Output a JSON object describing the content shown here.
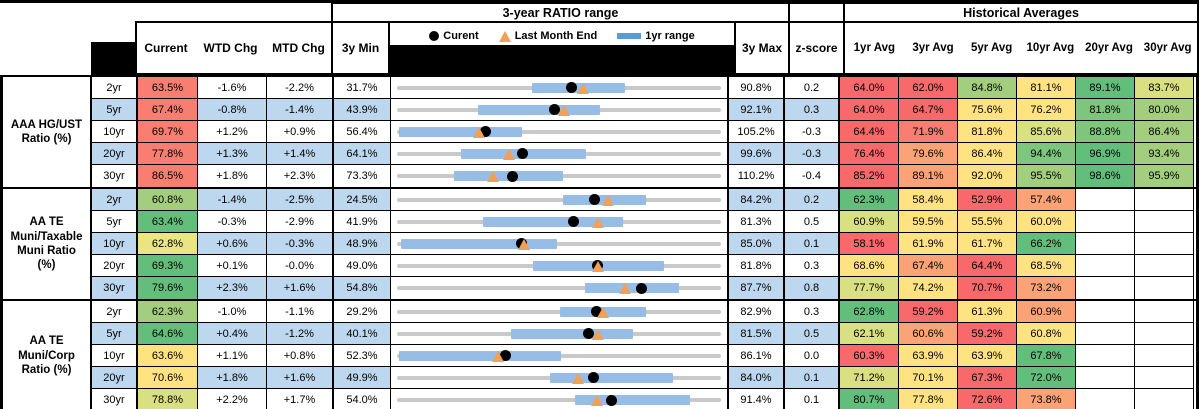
{
  "palette": {
    "r": "#F8696B",
    "s": "#F87E72",
    "o": "#FBA276",
    "y": "#FFE383",
    "py": "#E9E583",
    "yg": "#D9E082",
    "lg": "#A2CE7E",
    "mg": "#7EC57D",
    "g": "#63BE7B",
    "band": "#BDD7EE",
    "bar": "#97BCE5",
    "line": "#C9C9C9",
    "swatch": "#5B9BD5",
    "triangle": "#F2A054",
    "dot": "#000000"
  },
  "header": {
    "range_title": "3-year RATIO range",
    "hist_title": "Historical Averages",
    "col_current": "Current",
    "col_wtd": "WTD Chg",
    "col_mtd": "MTD Chg",
    "col_min": "3y Min",
    "col_max": "3y Max",
    "col_z": "z-score",
    "avg_cols": [
      "1yr Avg",
      "3yr Avg",
      "5yr Avg",
      "10yr Avg",
      "20yr Avg",
      "30yr Avg"
    ],
    "legend": {
      "current": "Curent",
      "lme": "Last Month End",
      "range": "1yr range"
    }
  },
  "groups": [
    {
      "label_lines": [
        "AAA HG/UST",
        "Ratio (%)"
      ],
      "rows": [
        {
          "tenor": "2yr",
          "current": "63.5%",
          "cur_c": "s",
          "wtd": "-1.6%",
          "mtd": "-2.2%",
          "min": "31.7%",
          "max": "90.8%",
          "z": "0.2",
          "chart": {
            "min": 31.7,
            "max": 90.8,
            "cur": 63.5,
            "lme": 65.7,
            "lo": 56.3,
            "hi": 73.2
          },
          "avg_vals": [
            "64.0%",
            "62.0%",
            "84.8%",
            "81.1%",
            "89.1%",
            "83.7%"
          ],
          "avg_cols": [
            "r",
            "r",
            "lg",
            "y",
            "g",
            "yg"
          ]
        },
        {
          "tenor": "5yr",
          "current": "67.4%",
          "cur_c": "s",
          "wtd": "-0.8%",
          "mtd": "-1.4%",
          "min": "43.9%",
          "max": "92.1%",
          "z": "0.3",
          "chart": {
            "min": 43.9,
            "max": 92.1,
            "cur": 67.4,
            "lme": 68.8,
            "lo": 55.9,
            "hi": 74.1
          },
          "avg_vals": [
            "64.0%",
            "64.7%",
            "75.6%",
            "76.2%",
            "81.8%",
            "80.0%"
          ],
          "avg_cols": [
            "r",
            "r",
            "y",
            "y",
            "mg",
            "lg"
          ]
        },
        {
          "tenor": "10yr",
          "current": "69.7%",
          "cur_c": "s",
          "wtd": "+1.2%",
          "mtd": "+0.9%",
          "min": "56.4%",
          "max": "105.2%",
          "z": "-0.3",
          "chart": {
            "min": 56.4,
            "max": 105.2,
            "cur": 69.7,
            "lme": 68.8,
            "lo": 56.7,
            "hi": 75.2
          },
          "avg_vals": [
            "64.4%",
            "71.9%",
            "81.8%",
            "85.6%",
            "88.8%",
            "86.4%"
          ],
          "avg_cols": [
            "r",
            "s",
            "y",
            "yg",
            "mg",
            "lg"
          ]
        },
        {
          "tenor": "20yr",
          "current": "77.8%",
          "cur_c": "s",
          "wtd": "+1.3%",
          "mtd": "+1.4%",
          "min": "64.1%",
          "max": "99.6%",
          "z": "-0.3",
          "chart": {
            "min": 64.1,
            "max": 99.6,
            "cur": 77.8,
            "lme": 76.4,
            "lo": 71.1,
            "hi": 84.8
          },
          "avg_vals": [
            "76.4%",
            "79.6%",
            "86.4%",
            "94.4%",
            "96.9%",
            "93.4%"
          ],
          "avg_cols": [
            "r",
            "o",
            "y",
            "mg",
            "g",
            "lg"
          ]
        },
        {
          "tenor": "30yr",
          "current": "86.5%",
          "cur_c": "s",
          "wtd": "+1.8%",
          "mtd": "+2.3%",
          "min": "73.3%",
          "max": "110.2%",
          "z": "-0.4",
          "chart": {
            "min": 73.3,
            "max": 110.2,
            "cur": 86.5,
            "lme": 84.2,
            "lo": 79.8,
            "hi": 92.2
          },
          "avg_vals": [
            "85.2%",
            "89.1%",
            "92.0%",
            "95.5%",
            "98.6%",
            "95.9%"
          ],
          "avg_cols": [
            "r",
            "o",
            "y",
            "lg",
            "g",
            "lg"
          ]
        }
      ]
    },
    {
      "label_lines": [
        "AA TE",
        "Muni/Taxable",
        "Muni Ratio",
        "(%)"
      ],
      "rows": [
        {
          "tenor": "2yr",
          "current": "60.8%",
          "cur_c": "lg",
          "wtd": "-1.4%",
          "mtd": "-2.5%",
          "min": "24.5%",
          "max": "84.2%",
          "z": "0.2",
          "chart": {
            "min": 24.5,
            "max": 84.2,
            "cur": 60.8,
            "lme": 63.3,
            "lo": 55.1,
            "hi": 70.3
          },
          "avg_vals": [
            "62.3%",
            "58.4%",
            "52.9%",
            "57.4%",
            "",
            ""
          ],
          "avg_cols": [
            "g",
            "y",
            "r",
            "o",
            "",
            ""
          ]
        },
        {
          "tenor": "5yr",
          "current": "63.4%",
          "cur_c": "g",
          "wtd": "-0.3%",
          "mtd": "-2.9%",
          "min": "41.9%",
          "max": "81.3%",
          "z": "0.5",
          "chart": {
            "min": 41.9,
            "max": 81.3,
            "cur": 63.4,
            "lme": 66.3,
            "lo": 52.4,
            "hi": 69.4
          },
          "avg_vals": [
            "60.9%",
            "59.5%",
            "55.5%",
            "60.0%",
            "",
            ""
          ],
          "avg_cols": [
            "yg",
            "y",
            "y",
            "y",
            "",
            ""
          ]
        },
        {
          "tenor": "10yr",
          "current": "62.8%",
          "cur_c": "py",
          "wtd": "+0.6%",
          "mtd": "-0.3%",
          "min": "48.9%",
          "max": "85.0%",
          "z": "0.1",
          "chart": {
            "min": 48.9,
            "max": 85.0,
            "cur": 62.8,
            "lme": 63.1,
            "lo": 49.3,
            "hi": 66.7
          },
          "avg_vals": [
            "58.1%",
            "61.9%",
            "61.7%",
            "66.2%",
            "",
            ""
          ],
          "avg_cols": [
            "r",
            "y",
            "y",
            "g",
            "",
            ""
          ]
        },
        {
          "tenor": "20yr",
          "current": "69.3%",
          "cur_c": "g",
          "wtd": "+0.1%",
          "mtd": "-0.0%",
          "min": "49.0%",
          "max": "81.8%",
          "z": "0.3",
          "chart": {
            "min": 49.0,
            "max": 81.8,
            "cur": 69.3,
            "lme": 69.3,
            "lo": 62.8,
            "hi": 76.0
          },
          "avg_vals": [
            "68.6%",
            "67.4%",
            "64.4%",
            "68.5%",
            "",
            ""
          ],
          "avg_cols": [
            "y",
            "o",
            "r",
            "y",
            "",
            ""
          ]
        },
        {
          "tenor": "30yr",
          "current": "79.6%",
          "cur_c": "g",
          "wtd": "+2.3%",
          "mtd": "+1.6%",
          "min": "54.8%",
          "max": "87.7%",
          "z": "0.8",
          "chart": {
            "min": 54.8,
            "max": 87.7,
            "cur": 79.6,
            "lme": 78.0,
            "lo": 73.9,
            "hi": 83.4
          },
          "avg_vals": [
            "77.7%",
            "74.2%",
            "70.7%",
            "73.2%",
            "",
            ""
          ],
          "avg_cols": [
            "yg",
            "y",
            "r",
            "o",
            "",
            ""
          ]
        }
      ]
    },
    {
      "label_lines": [
        "AA TE",
        "Muni/Corp",
        "Ratio (%)"
      ],
      "rows": [
        {
          "tenor": "2yr",
          "current": "62.3%",
          "cur_c": "lg",
          "wtd": "-1.0%",
          "mtd": "-1.1%",
          "min": "29.2%",
          "max": "82.9%",
          "z": "0.3",
          "chart": {
            "min": 29.2,
            "max": 82.9,
            "cur": 62.3,
            "lme": 63.4,
            "lo": 56.2,
            "hi": 70.4
          },
          "avg_vals": [
            "62.8%",
            "59.2%",
            "61.3%",
            "60.9%",
            "",
            ""
          ],
          "avg_cols": [
            "g",
            "r",
            "y",
            "o",
            "",
            ""
          ]
        },
        {
          "tenor": "5yr",
          "current": "64.6%",
          "cur_c": "g",
          "wtd": "+0.4%",
          "mtd": "-1.2%",
          "min": "40.1%",
          "max": "81.5%",
          "z": "0.5",
          "chart": {
            "min": 40.1,
            "max": 81.5,
            "cur": 64.6,
            "lme": 65.8,
            "lo": 54.7,
            "hi": 70.3
          },
          "avg_vals": [
            "62.1%",
            "60.6%",
            "59.2%",
            "60.8%",
            "",
            ""
          ],
          "avg_cols": [
            "yg",
            "o",
            "r",
            "y",
            "",
            ""
          ]
        },
        {
          "tenor": "10yr",
          "current": "63.6%",
          "cur_c": "y",
          "wtd": "+1.1%",
          "mtd": "+0.8%",
          "min": "52.3%",
          "max": "86.1%",
          "z": "0.0",
          "chart": {
            "min": 52.3,
            "max": 86.1,
            "cur": 63.6,
            "lme": 62.8,
            "lo": 52.5,
            "hi": 69.4
          },
          "avg_vals": [
            "60.3%",
            "63.9%",
            "63.9%",
            "67.8%",
            "",
            ""
          ],
          "avg_cols": [
            "r",
            "y",
            "y",
            "g",
            "",
            ""
          ]
        },
        {
          "tenor": "20yr",
          "current": "70.6%",
          "cur_c": "y",
          "wtd": "+1.8%",
          "mtd": "+1.6%",
          "min": "49.9%",
          "max": "84.0%",
          "z": "0.1",
          "chart": {
            "min": 49.9,
            "max": 84.0,
            "cur": 70.6,
            "lme": 69.0,
            "lo": 66.0,
            "hi": 79.0
          },
          "avg_vals": [
            "71.2%",
            "70.1%",
            "67.3%",
            "72.0%",
            "",
            ""
          ],
          "avg_cols": [
            "yg",
            "y",
            "r",
            "g",
            "",
            ""
          ]
        },
        {
          "tenor": "30yr",
          "current": "78.8%",
          "cur_c": "yg",
          "wtd": "+2.2%",
          "mtd": "+1.7%",
          "min": "54.0%",
          "max": "91.4%",
          "z": "0.1",
          "chart": {
            "min": 54.0,
            "max": 91.4,
            "cur": 78.8,
            "lme": 77.1,
            "lo": 74.5,
            "hi": 87.8
          },
          "avg_vals": [
            "80.7%",
            "77.8%",
            "72.6%",
            "73.8%",
            "",
            ""
          ],
          "avg_cols": [
            "g",
            "y",
            "r",
            "o",
            "",
            ""
          ]
        }
      ]
    }
  ]
}
